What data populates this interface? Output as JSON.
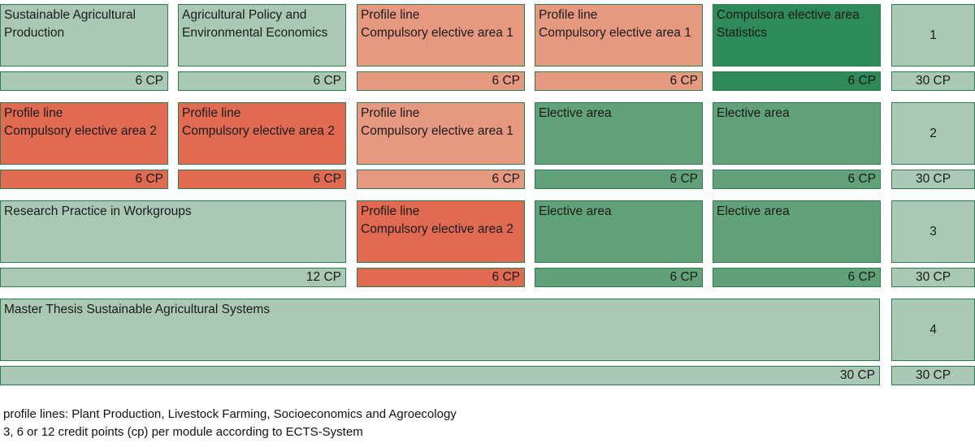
{
  "colors": {
    "light": "#aac9b5",
    "dark": "#2f8a59",
    "mid": "#62a27a",
    "salmon": "#e69880",
    "red": "#e06a52",
    "border": "#2e7d4f"
  },
  "semesters": [
    {
      "number": "1",
      "total": "30 CP",
      "modules": [
        {
          "title": "Sustainable Agricultural\nProduction",
          "cp": "6 CP",
          "style": "light"
        },
        {
          "title": "Agricultural Policy and\nEnvironmental Economics",
          "cp": "6 CP",
          "style": "light"
        },
        {
          "title": "Profile line\nCompulsory elective area 1",
          "cp": "6 CP",
          "style": "salmon"
        },
        {
          "title": "Profile line\nCompulsory elective area 1",
          "cp": "6 CP",
          "style": "salmon"
        },
        {
          "title": "Compulsora elective area\nStatistics",
          "cp": "6 CP",
          "style": "dark"
        }
      ]
    },
    {
      "number": "2",
      "total": "30 CP",
      "modules": [
        {
          "title": "Profile line\nCompulsory elective area 2",
          "cp": "6 CP",
          "style": "red"
        },
        {
          "title": "Profile line\nCompulsory elective area 2",
          "cp": "6 CP",
          "style": "red"
        },
        {
          "title": "Profile line\nCompulsory elective area 1",
          "cp": "6 CP",
          "style": "salmon"
        },
        {
          "title": "Elective area",
          "cp": "6 CP",
          "style": "mid"
        },
        {
          "title": "Elective area",
          "cp": "6 CP",
          "style": "mid"
        }
      ]
    },
    {
      "number": "3",
      "total": "30 CP",
      "modules": [
        {
          "title": "Research Practice in Workgroups",
          "cp": "12 CP",
          "style": "light"
        },
        {
          "title": "Profile line\nCompulsory elective area 2",
          "cp": "6 CP",
          "style": "red"
        },
        {
          "title": "Elective area",
          "cp": "6 CP",
          "style": "mid"
        },
        {
          "title": "Elective area",
          "cp": "6 CP",
          "style": "mid"
        }
      ]
    },
    {
      "number": "4",
      "total": "30 CP",
      "modules": [
        {
          "title": "Master Thesis Sustainable Agricultural Systems",
          "cp": "30 CP",
          "style": "light"
        }
      ]
    }
  ],
  "legend": {
    "line1": "profile lines: Plant Production, Livestock Farming, Socioeconomics and Agroecology",
    "line2": "3, 6 or 12 credit points (cp) per module according to ECTS-System"
  }
}
